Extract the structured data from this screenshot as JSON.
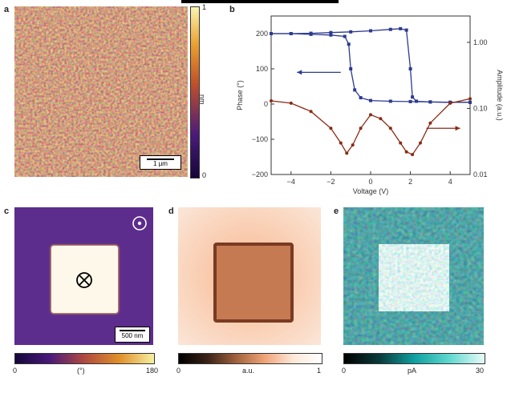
{
  "panel_labels": {
    "a": "a",
    "b": "b",
    "c": "c",
    "d": "d",
    "e": "e"
  },
  "panel_a": {
    "colorbar_max": "1",
    "colorbar_min": "0",
    "colorbar_unit": "nm",
    "scale_bar": "1 µm"
  },
  "panel_c": {
    "colorbar_min": "0",
    "colorbar_max": "180",
    "colorbar_unit": "(°)",
    "scale_bar": "500 nm",
    "icon_out": "dot-in-circle-icon",
    "icon_in": "cross-in-circle-icon"
  },
  "panel_d": {
    "colorbar_min": "0",
    "colorbar_max": "1",
    "colorbar_unit": "a.u."
  },
  "panel_e": {
    "colorbar_min": "0",
    "colorbar_max": "30",
    "colorbar_unit": "pA"
  },
  "colors": {
    "phase_series": "#2c3a8f",
    "amplitude_series": "#8a2a14",
    "cmap_a_low": "#1a0f4a",
    "cmap_a_high": "#f7e36b",
    "cmap_c_bg": "#5a2a8a",
    "cmap_d_bg": "#f2b08a",
    "cmap_d_square": "#c9744a",
    "cmap_e_bg": "#0f4a4a",
    "cmap_e_high": "#c8f4f0"
  },
  "chart_data": {
    "type": "line",
    "xlabel": "Voltage (V)",
    "ylabel": "Phase (°)",
    "y2label": "Amplitude (a.u.)",
    "xlim": [
      -5,
      5
    ],
    "ylim": [
      -200,
      250
    ],
    "y2lim_log": [
      0.01,
      2.5
    ],
    "x_ticks": [
      "−4",
      "−2",
      "0",
      "2",
      "4"
    ],
    "y_ticks": [
      "−200",
      "−100",
      "0",
      "100",
      "200"
    ],
    "y2_ticks": [
      "0.01",
      "0.10",
      "1.00"
    ],
    "series": [
      {
        "axis": "left",
        "color": "#2c3a8f",
        "values_forward": [
          [
            -5,
            200
          ],
          [
            -4,
            200
          ],
          [
            -3,
            201
          ],
          [
            -2,
            203
          ],
          [
            -1,
            205
          ],
          [
            0,
            208
          ],
          [
            1,
            212
          ],
          [
            1.5,
            214
          ],
          [
            1.8,
            210
          ],
          [
            2.0,
            100
          ],
          [
            2.1,
            20
          ],
          [
            2.3,
            8
          ],
          [
            3,
            6
          ],
          [
            4,
            5
          ],
          [
            5,
            5
          ]
        ],
        "values_backward": [
          [
            5,
            5
          ],
          [
            4,
            5
          ],
          [
            3,
            6
          ],
          [
            2,
            7
          ],
          [
            1,
            8
          ],
          [
            0,
            10
          ],
          [
            -0.5,
            18
          ],
          [
            -0.8,
            40
          ],
          [
            -1.0,
            100
          ],
          [
            -1.1,
            170
          ],
          [
            -1.3,
            192
          ],
          [
            -2,
            196
          ],
          [
            -3,
            198
          ],
          [
            -4,
            200
          ],
          [
            -5,
            200
          ]
        ]
      },
      {
        "axis": "right",
        "color": "#8a2a14",
        "values": [
          [
            -5,
            0.13
          ],
          [
            -4,
            0.12
          ],
          [
            -3,
            0.09
          ],
          [
            -2,
            0.05
          ],
          [
            -1.5,
            0.03
          ],
          [
            -1.2,
            0.021
          ],
          [
            -0.9,
            0.028
          ],
          [
            -0.5,
            0.05
          ],
          [
            0,
            0.08
          ],
          [
            0.5,
            0.07
          ],
          [
            1,
            0.05
          ],
          [
            1.5,
            0.03
          ],
          [
            1.8,
            0.022
          ],
          [
            2.1,
            0.02
          ],
          [
            2.5,
            0.03
          ],
          [
            3,
            0.06
          ],
          [
            4,
            0.12
          ],
          [
            5,
            0.14
          ]
        ]
      }
    ],
    "annotations": [
      {
        "type": "arrow",
        "direction": "left",
        "series": 0
      },
      {
        "type": "arrow",
        "direction": "right",
        "series": 1
      }
    ]
  }
}
